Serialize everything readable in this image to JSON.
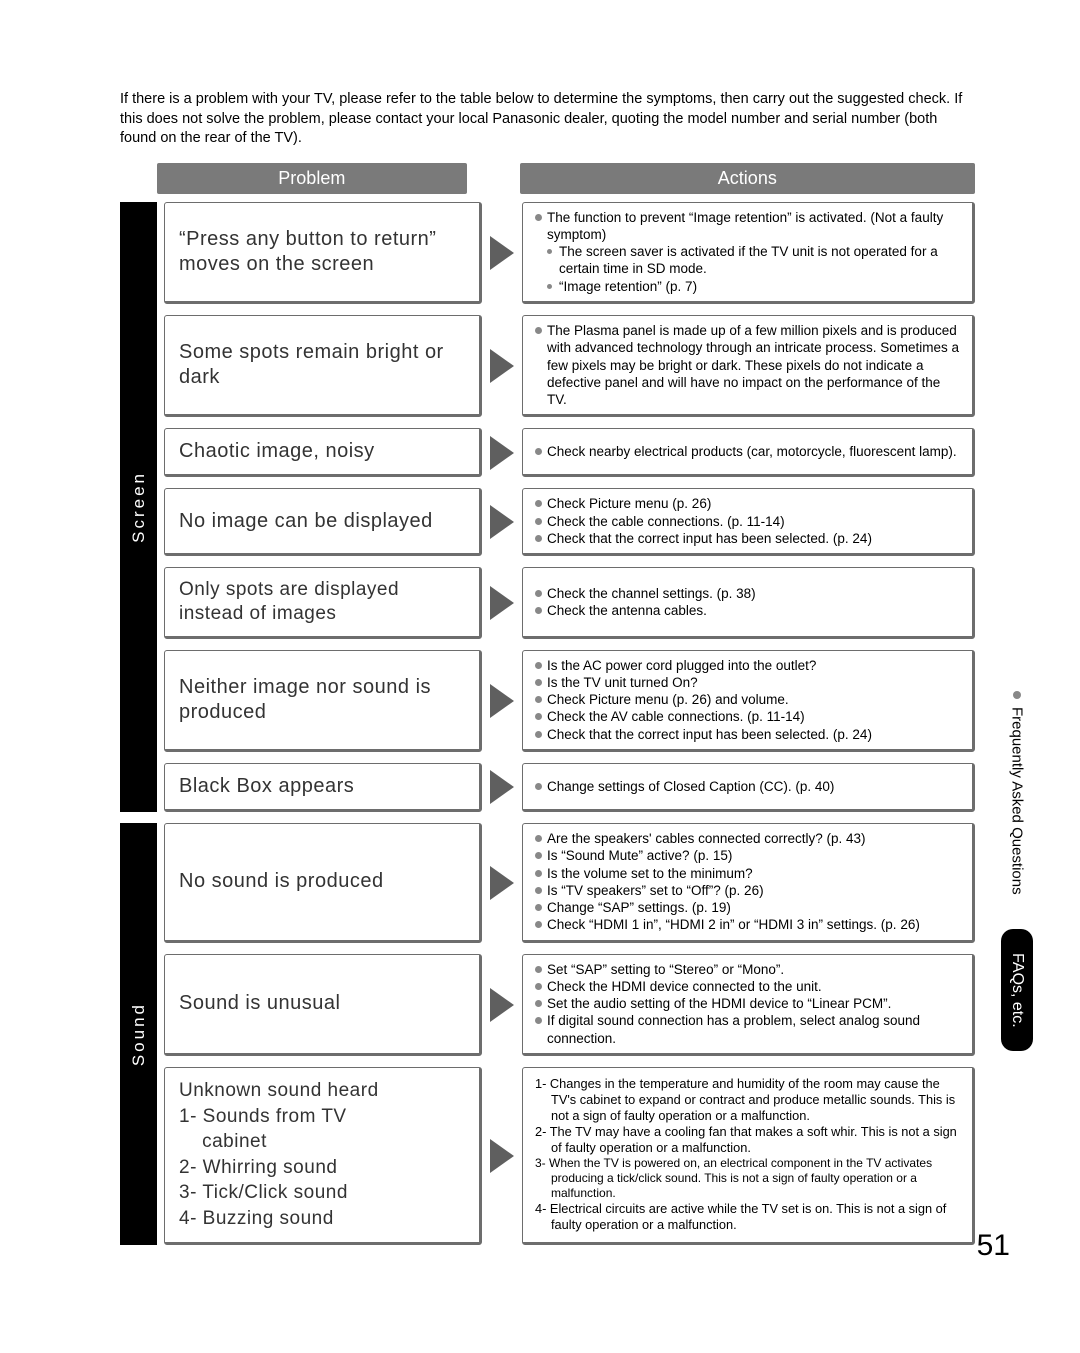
{
  "intro": "If there is a problem with your TV, please refer to the table below to determine the symptoms, then carry out the suggested check. If this does not solve the problem, please contact your local Panasonic dealer, quoting the model number and serial number (both found on the rear of the TV).",
  "headers": {
    "problem": "Problem",
    "actions": "Actions"
  },
  "sections": [
    {
      "label": "Screen",
      "rows": [
        {
          "problem": "“Press any button to return” moves on the screen",
          "actions_html": "<ul><li>The function to prevent “Image retention” is activated. (Not a faulty symptom)</li><li class='sub'>The screen saver is activated if the TV unit is not operated for a certain time in SD mode.</li><li class='sub'>“Image retention” (p. 7)</li></ul>"
        },
        {
          "problem": "Some spots remain bright or dark",
          "actions_html": "<ul><li>The Plasma panel is made up of a few million pixels and is produced with advanced technology through an intricate process. Sometimes a few pixels may be bright or dark. These pixels do not indicate a defective panel and will have no impact on the performance of the TV.</li></ul>"
        },
        {
          "problem": "Chaotic image, noisy",
          "actions_html": "<ul><li>Check nearby electrical products (car, motorcycle, fluorescent lamp).</li></ul>"
        },
        {
          "problem": "No image can be displayed",
          "actions_html": "<ul><li>Check Picture menu (p. 26)</li><li>Check the cable connections. (p. 11-14)</li><li>Check that the correct input has been selected. (p. 24)</li></ul>"
        },
        {
          "problem": "Only spots are displayed instead of images",
          "problem_class": "small",
          "actions_html": "<ul><li>Check the channel settings. (p. 38)</li><li>Check the antenna cables.</li></ul>"
        },
        {
          "problem": "Neither image nor sound is produced",
          "actions_html": "<ul><li>Is the AC power cord plugged into the outlet?</li><li>Is the TV unit turned On?</li><li>Check Picture menu (p. 26) and volume.</li><li>Check the AV cable connections. (p. 11-14)</li><li>Check that the correct input has been selected. (p. 24)</li></ul>"
        },
        {
          "problem": "Black Box appears",
          "actions_html": "<ul><li>Change settings of Closed Caption (CC). (p. 40)</li></ul>"
        }
      ]
    },
    {
      "label": "Sound",
      "rows": [
        {
          "problem": "No sound is produced",
          "actions_html": "<ul><li>Are the speakers' cables connected correctly? (p. 43)</li><li>Is “Sound Mute” active? (p. 15)</li><li>Is the volume set to the minimum?</li><li>Is “TV speakers” set to “Off”? (p. 26)</li><li>Change “SAP” settings. (p. 19)</li><li>Check “HDMI 1 in”, “HDMI 2 in” or “HDMI 3 in” settings. (p. 26)</li></ul>"
        },
        {
          "problem": "Sound is unusual",
          "actions_html": "<ul><li>Set “SAP” setting to “Stereo” or “Mono”.</li><li>Check the HDMI device connected to the unit.</li><li>Set the audio setting of the HDMI device to “Linear PCM”.</li><li>If digital sound connection has a problem, select analog sound connection.</li></ul>"
        },
        {
          "problem_html": "Unknown sound heard<br>1- Sounds from TV<br>&nbsp;&nbsp;&nbsp;&nbsp;cabinet<br>2- Whirring sound<br>3- Tick/Click sound<br>4- Buzzing sound",
          "problem_class": "problem-multi",
          "actions_html": "<div class='numbered'>1- Changes in the temperature and humidity of the room may cause the TV's cabinet to expand or contract and produce metallic sounds. This is not a sign of faulty operation or a malfunction.</div><div class='numbered'>2- The TV may have a cooling fan that makes a soft whir. This is not a sign of faulty operation or a malfunction.</div><div class='numbered small'>3- When the TV is powered on, an electrical component in the TV activates producing a tick/click sound. This is not a sign of faulty operation or a malfunction.</div><div class='numbered'>4- Electrical circuits are active while the TV set is on. This is not a sign of faulty operation or a malfunction.</div>"
        }
      ]
    }
  ],
  "tabs": {
    "faq": "Frequently Asked Questions",
    "black": "FAQs, etc."
  },
  "page_number": "51",
  "colors": {
    "header_bg": "#7a7a7a",
    "sidebar_bg": "#000000",
    "border": "#6d6d6d",
    "bullet": "#888888",
    "arrow_fill": "#5f5f5f"
  }
}
